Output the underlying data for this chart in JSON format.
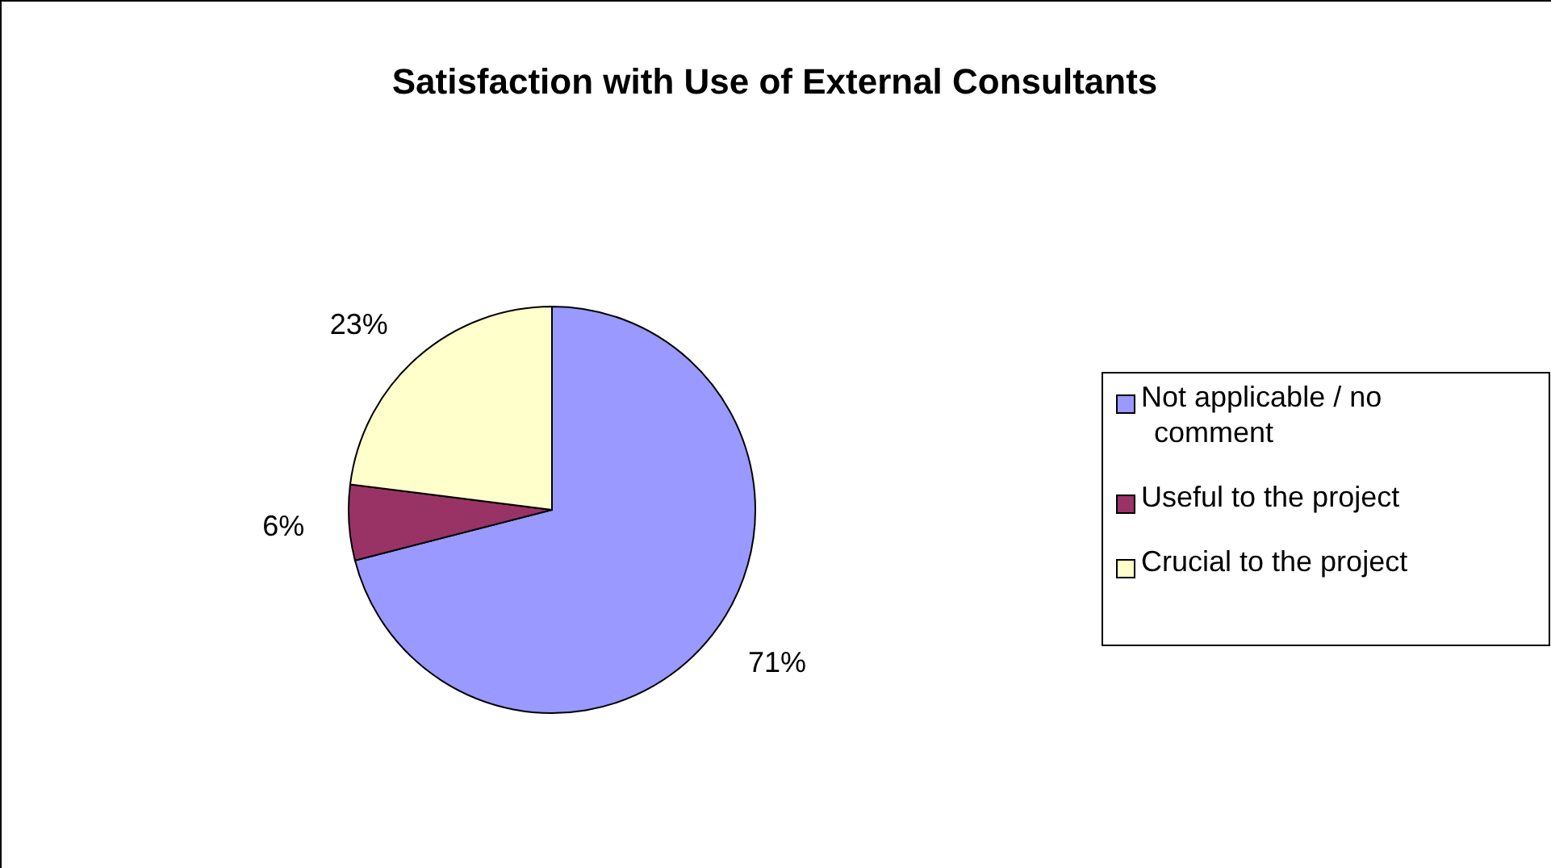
{
  "chart_data": {
    "type": "pie",
    "title": "Satisfaction with Use of External Consultants",
    "categories": [
      "Not applicable / no comment",
      "Useful to the project",
      "Crucial to the project"
    ],
    "values": [
      71,
      6,
      23
    ],
    "colors": [
      "#9999ff",
      "#993366",
      "#ffffcc"
    ],
    "value_labels": [
      "71%",
      "6%",
      "23%"
    ],
    "legend": "right"
  }
}
